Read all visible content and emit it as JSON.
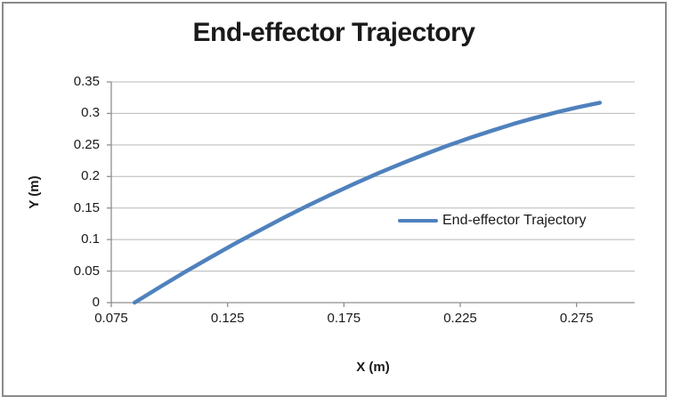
{
  "window": {
    "background": "#FFFFFF",
    "border_color": "#8A8A8A"
  },
  "chart_data": {
    "type": "line",
    "title": "End-effector Trajectory",
    "xlabel": "X (m)",
    "ylabel": "Y (m)",
    "xlim": [
      0.075,
      0.3
    ],
    "ylim": [
      0,
      0.35
    ],
    "x_ticks": [
      0.075,
      0.125,
      0.175,
      0.225,
      0.275
    ],
    "x_tick_labels": [
      "0.075",
      "0.125",
      "0.175",
      "0.225",
      "0.275"
    ],
    "y_ticks": [
      0,
      0.05,
      0.1,
      0.15,
      0.2,
      0.25,
      0.3,
      0.35
    ],
    "y_tick_labels": [
      "0",
      "0.05",
      "0.1",
      "0.15",
      "0.2",
      "0.25",
      "0.3",
      "0.35"
    ],
    "grid": "horizontal",
    "legend": {
      "position": "center-right-inside",
      "entries": [
        {
          "label": "End-effector Trajectory",
          "color": "#4F81BD"
        }
      ]
    },
    "colors": {
      "series": "#4F81BD",
      "grid": "#B8B8B8",
      "axis": "#8F8F8F",
      "text": "#1A1A1A"
    },
    "series": [
      {
        "name": "End-effector Trajectory",
        "color": "#4F81BD",
        "points": [
          [
            0.085,
            0.0
          ],
          [
            0.0959,
            0.0247
          ],
          [
            0.1067,
            0.0485
          ],
          [
            0.1174,
            0.0713
          ],
          [
            0.128,
            0.0933
          ],
          [
            0.1386,
            0.1142
          ],
          [
            0.149,
            0.1343
          ],
          [
            0.1593,
            0.1534
          ],
          [
            0.1696,
            0.1716
          ],
          [
            0.1797,
            0.1888
          ],
          [
            0.1898,
            0.2052
          ],
          [
            0.1997,
            0.2205
          ],
          [
            0.2096,
            0.235
          ],
          [
            0.2193,
            0.2485
          ],
          [
            0.229,
            0.2611
          ],
          [
            0.2386,
            0.2727
          ],
          [
            0.248,
            0.2835
          ],
          [
            0.2574,
            0.2932
          ],
          [
            0.2667,
            0.3021
          ],
          [
            0.2759,
            0.31
          ],
          [
            0.285,
            0.317
          ]
        ]
      }
    ]
  }
}
